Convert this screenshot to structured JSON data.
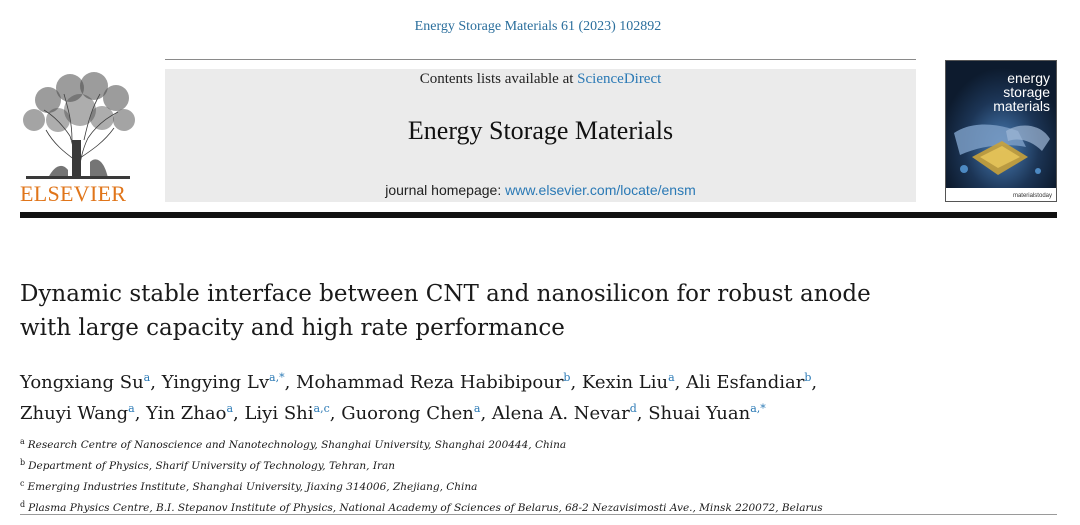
{
  "header": {
    "citation": "Energy Storage Materials 61 (2023) 102892",
    "contents_prefix": "Contents lists available at ",
    "contents_link": "ScienceDirect",
    "journal_name": "Energy Storage Materials",
    "homepage_prefix": "journal homepage: ",
    "homepage_link": "www.elsevier.com/locate/ensm",
    "publisher": "ELSEVIER"
  },
  "cover": {
    "title_lines": [
      "energy",
      "storage",
      "materials"
    ],
    "brand": "materialstoday"
  },
  "article": {
    "title_line1": "Dynamic stable interface between CNT and nanosilicon for robust anode",
    "title_line2": "with large capacity and high rate performance",
    "authors": [
      {
        "name": "Yongxiang Su",
        "sup": "a"
      },
      {
        "name": "Yingying Lv",
        "sup": "a,*"
      },
      {
        "name": "Mohammad Reza Habibipour",
        "sup": "b"
      },
      {
        "name": "Kexin Liu",
        "sup": "a"
      },
      {
        "name": "Ali Esfandiar",
        "sup": "b"
      },
      {
        "name": "Zhuyi Wang",
        "sup": "a"
      },
      {
        "name": "Yin Zhao",
        "sup": "a"
      },
      {
        "name": "Liyi Shi",
        "sup": "a,c"
      },
      {
        "name": "Guorong Chen",
        "sup": "a"
      },
      {
        "name": "Alena A. Nevar",
        "sup": "d"
      },
      {
        "name": "Shuai Yuan",
        "sup": "a,*"
      }
    ],
    "affiliations": [
      {
        "label": "a",
        "text": "Research Centre of Nanoscience and Nanotechnology, Shanghai University, Shanghai 200444, China"
      },
      {
        "label": "b",
        "text": "Department of Physics, Sharif University of Technology, Tehran, Iran"
      },
      {
        "label": "c",
        "text": "Emerging Industries Institute, Shanghai University, Jiaxing 314006, Zhejiang, China"
      },
      {
        "label": "d",
        "text": "Plasma Physics Centre, B.I. Stepanov Institute of Physics, National Academy of Sciences of Belarus, 68-2 Nezavisimosti Ave., Minsk 220072, Belarus"
      }
    ]
  },
  "colors": {
    "link": "#2a79b5",
    "publisher_orange": "#e0751a",
    "banner_gray": "#ebebeb"
  }
}
